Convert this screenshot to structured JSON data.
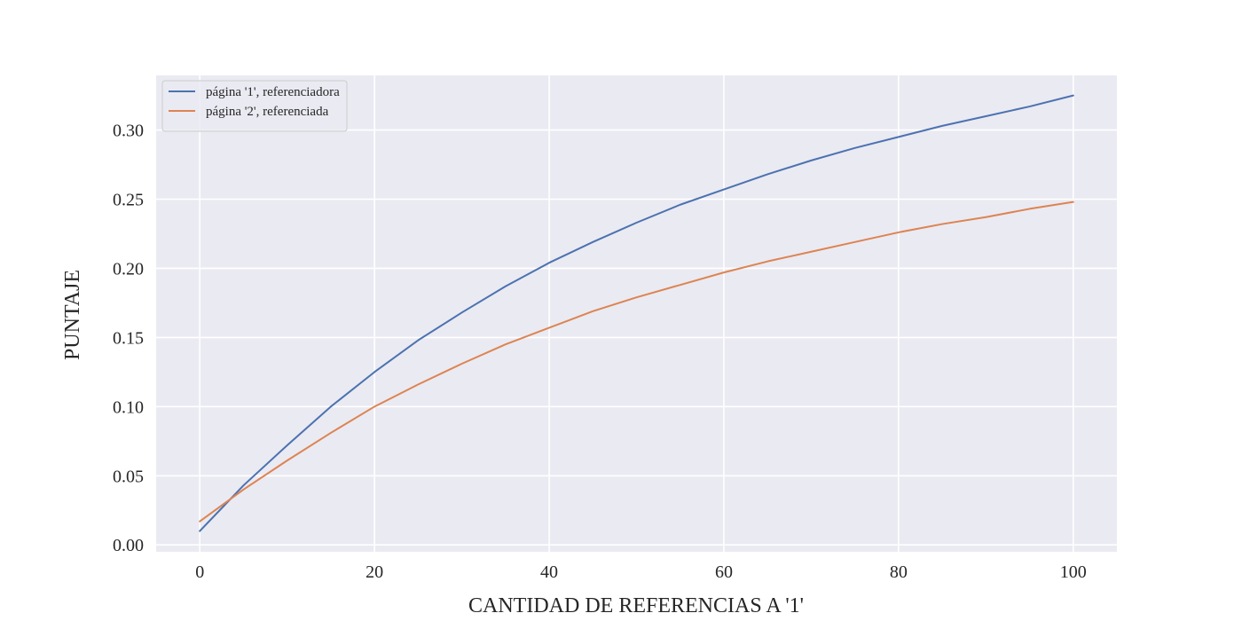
{
  "chart_data": {
    "type": "line",
    "title": "",
    "xlabel": "CANTIDAD DE REFERENCIAS A '1'",
    "ylabel": "PUNTAJE",
    "xlim": [
      -5,
      105
    ],
    "ylim": [
      -0.005,
      0.3395
    ],
    "xticks": [
      0,
      20,
      40,
      60,
      80,
      100
    ],
    "xtick_labels": [
      "0",
      "20",
      "40",
      "60",
      "80",
      "100"
    ],
    "yticks": [
      0.0,
      0.05,
      0.1,
      0.15,
      0.2,
      0.25,
      0.3
    ],
    "ytick_labels": [
      "0.00",
      "0.05",
      "0.10",
      "0.15",
      "0.20",
      "0.25",
      "0.30"
    ],
    "grid": true,
    "legend_position": "top-left",
    "x": [
      0,
      5,
      10,
      15,
      20,
      25,
      30,
      35,
      40,
      45,
      50,
      55,
      60,
      65,
      70,
      75,
      80,
      85,
      90,
      95,
      100
    ],
    "series": [
      {
        "name": "página '1', referenciadora",
        "color": "#4c72b0",
        "values": [
          0.01,
          0.043,
          0.072,
          0.1,
          0.125,
          0.148,
          0.168,
          0.187,
          0.204,
          0.219,
          0.233,
          0.246,
          0.257,
          0.268,
          0.278,
          0.287,
          0.295,
          0.303,
          0.31,
          0.317,
          0.325
        ]
      },
      {
        "name": "página '2', referenciada",
        "color": "#dd8452",
        "values": [
          0.017,
          0.04,
          0.061,
          0.081,
          0.1,
          0.116,
          0.131,
          0.145,
          0.157,
          0.169,
          0.179,
          0.188,
          0.197,
          0.205,
          0.212,
          0.219,
          0.226,
          0.232,
          0.237,
          0.243,
          0.248
        ]
      }
    ]
  }
}
